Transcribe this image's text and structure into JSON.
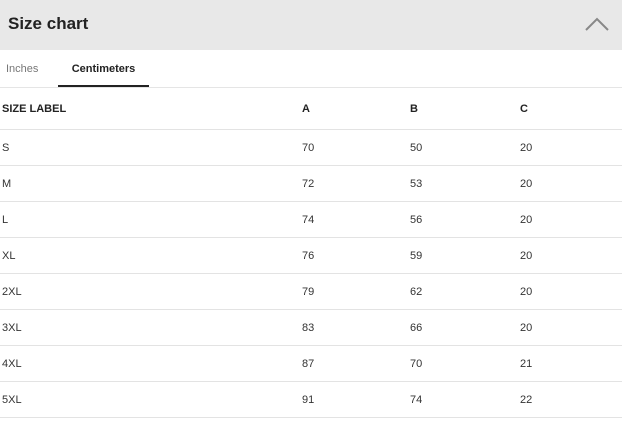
{
  "header": {
    "title": "Size chart",
    "collapse_icon": "chevron-up-icon"
  },
  "tabs": [
    {
      "label": "Inches",
      "active": false
    },
    {
      "label": "Centimeters",
      "active": true
    }
  ],
  "table": {
    "columns": [
      "SIZE LABEL",
      "A",
      "B",
      "C"
    ],
    "rows": [
      [
        "S",
        "70",
        "50",
        "20"
      ],
      [
        "M",
        "72",
        "53",
        "20"
      ],
      [
        "L",
        "74",
        "56",
        "20"
      ],
      [
        "XL",
        "76",
        "59",
        "20"
      ],
      [
        "2XL",
        "79",
        "62",
        "20"
      ],
      [
        "3XL",
        "83",
        "66",
        "20"
      ],
      [
        "4XL",
        "87",
        "70",
        "21"
      ],
      [
        "5XL",
        "91",
        "74",
        "22"
      ]
    ]
  }
}
